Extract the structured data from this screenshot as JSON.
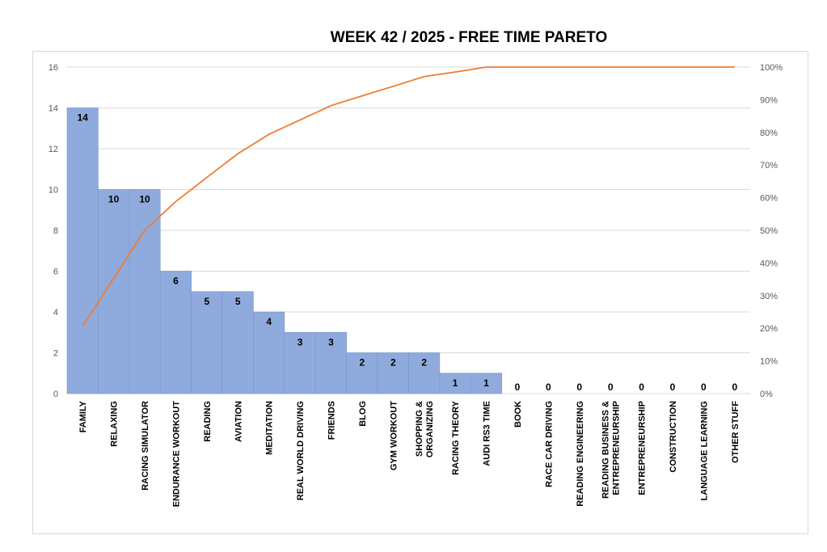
{
  "chart_data": {
    "type": "bar",
    "title": "WEEK 42 / 2025  - FREE TIME PARETO",
    "categories": [
      "FAMILY",
      "RELAXING",
      "RACING SIMULATOR",
      "ENDURANCE WORKOUT",
      "READING",
      "AVIATION",
      "MEDITATION",
      "REAL WORLD DRIVING",
      "FRIENDS",
      "BLOG",
      "GYM WORKOUT",
      "SHOPPING & ORGANIZING",
      "RACING THEORY",
      "AUDI RS3 TIME",
      "BOOK",
      "RACE CAR DRIVING",
      "READING ENGINEERING",
      "READING BUSINESS & ENTREPRENEURSHIP",
      "ENTREPRENEURSHIP",
      "CONSTRUCTION",
      "LANGUAGE LEARNING",
      "OTHER STUFF"
    ],
    "category_lines": [
      [
        "FAMILY"
      ],
      [
        "RELAXING"
      ],
      [
        "RACING SIMULATOR"
      ],
      [
        "ENDURANCE WORKOUT"
      ],
      [
        "READING"
      ],
      [
        "AVIATION"
      ],
      [
        "MEDITATION"
      ],
      [
        "REAL WORLD DRIVING"
      ],
      [
        "FRIENDS"
      ],
      [
        "BLOG"
      ],
      [
        "GYM WORKOUT"
      ],
      [
        "SHOPPING &",
        "ORGANIZING"
      ],
      [
        "RACING THEORY"
      ],
      [
        "AUDI RS3 TIME"
      ],
      [
        "BOOK"
      ],
      [
        "RACE CAR DRIVING"
      ],
      [
        "READING ENGINEERING"
      ],
      [
        "READING BUSINESS &",
        "ENTREPRENEURSHIP"
      ],
      [
        "ENTREPRENEURSHIP"
      ],
      [
        "CONSTRUCTION"
      ],
      [
        "LANGUAGE LEARNING"
      ],
      [
        "OTHER STUFF"
      ]
    ],
    "series": [
      {
        "type": "bar",
        "values": [
          14,
          10,
          10,
          6,
          5,
          5,
          4,
          3,
          3,
          2,
          2,
          2,
          1,
          1,
          0,
          0,
          0,
          0,
          0,
          0,
          0,
          0
        ]
      },
      {
        "type": "line",
        "axis": "secondary",
        "values": [
          20.6,
          35.3,
          50.0,
          58.8,
          66.2,
          73.5,
          79.4,
          83.8,
          88.2,
          91.2,
          94.1,
          97.1,
          98.5,
          100,
          100,
          100,
          100,
          100,
          100,
          100,
          100,
          100
        ]
      }
    ],
    "ylim": [
      0,
      16
    ],
    "yticks": [
      "0",
      "2",
      "4",
      "6",
      "8",
      "10",
      "12",
      "14",
      "16"
    ],
    "y2lim": [
      0,
      100
    ],
    "y2ticks": [
      "0%",
      "10%",
      "20%",
      "30%",
      "40%",
      "50%",
      "60%",
      "70%",
      "80%",
      "90%",
      "100%"
    ],
    "grid": true,
    "legend": "none",
    "colors": {
      "bar": "#8faadc",
      "bar_edge": "#7a96cc",
      "line": "#ed7d31",
      "grid": "#d9d9d9"
    }
  }
}
